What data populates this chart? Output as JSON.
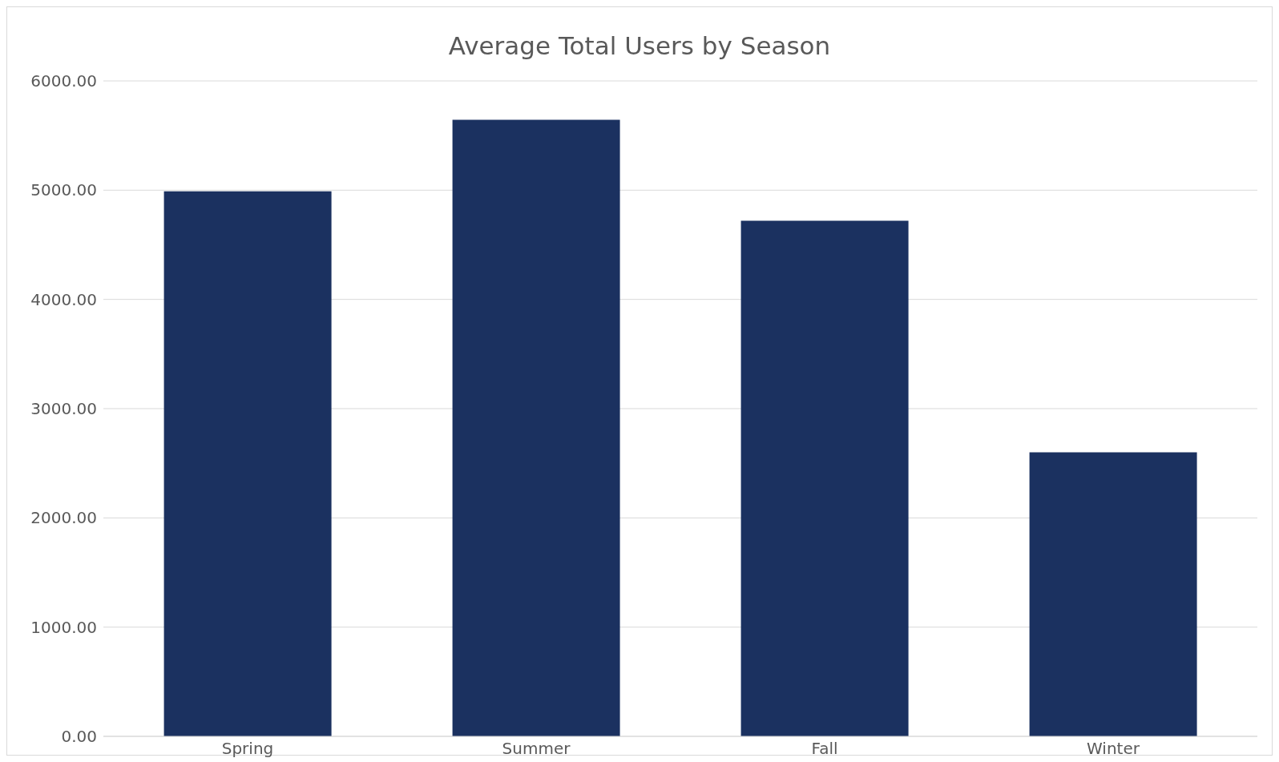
{
  "chart_data": {
    "type": "bar",
    "title": "Average Total Users by Season",
    "categories": [
      "Spring",
      "Summer",
      "Fall",
      "Winter"
    ],
    "values": [
      4990,
      5645,
      4720,
      2600
    ],
    "color": "#1b3160",
    "ylim": [
      0,
      6000
    ],
    "yticks": [
      {
        "value": 0,
        "label": "0.00"
      },
      {
        "value": 1000,
        "label": "1000.00"
      },
      {
        "value": 2000,
        "label": "2000.00"
      },
      {
        "value": 3000,
        "label": "3000.00"
      },
      {
        "value": 4000,
        "label": "4000.00"
      },
      {
        "value": 5000,
        "label": "5000.00"
      },
      {
        "value": 6000,
        "label": "6000.00"
      }
    ],
    "grid": "y"
  }
}
